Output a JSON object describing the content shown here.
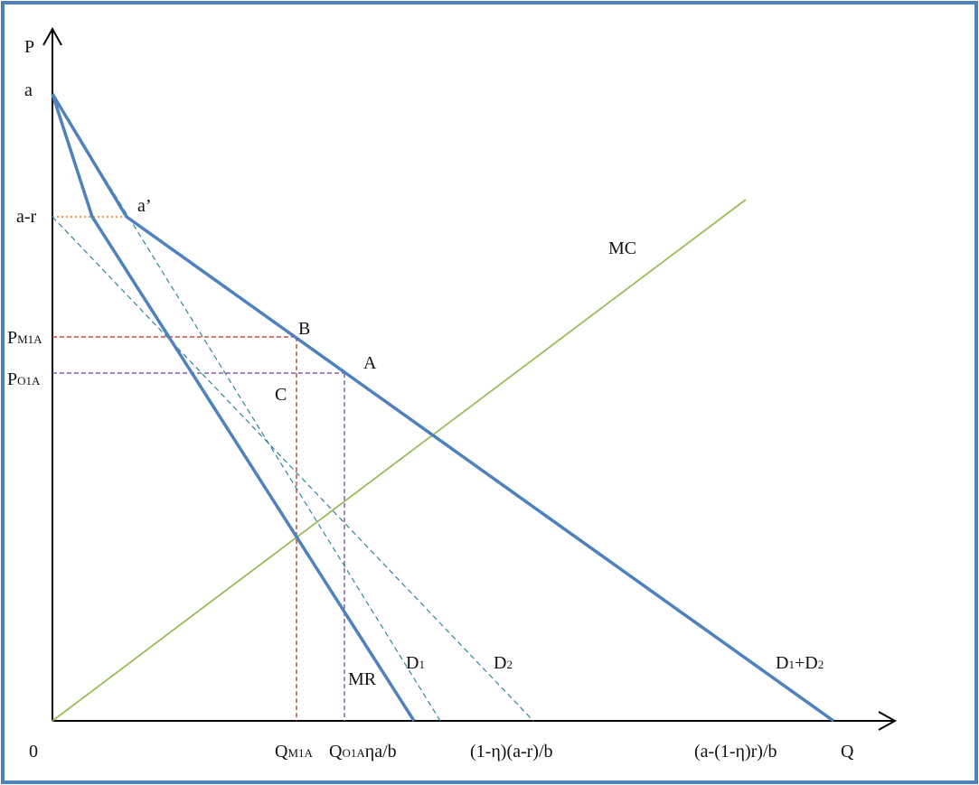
{
  "axes": {
    "y_label": "P",
    "x_label": "Q",
    "origin_label": "0"
  },
  "y_labels": {
    "a": "a",
    "a_minus_r": "a-r",
    "p_m1a_main": "P",
    "p_m1a_sub": "M1A",
    "p_o1a_main": "P",
    "p_o1a_sub": "O1A"
  },
  "x_labels": {
    "q_m1a_main": "Q",
    "q_m1a_sub": "M1A",
    "q_o1a_main": "Q",
    "q_o1a_sub": "O1A",
    "eta_a_b": "ηa/b",
    "one_minus_eta": "(1-η)(a-r)/b",
    "intercept_total": "(a-(1-η)r)/b"
  },
  "points": {
    "a_prime": "a’",
    "B": "B",
    "A": "A",
    "C": "C"
  },
  "curves": {
    "mc": "MC",
    "mr": "MR",
    "d1_main": "D",
    "d1_sub": "1",
    "d2_main": "D",
    "d2_sub": "2",
    "dsum_main1": "D",
    "dsum_sub1": "1",
    "dsum_plus": "+D",
    "dsum_sub2": "2"
  },
  "colors": {
    "frame": "#4f81bd",
    "demand": "#4f81bd",
    "mc": "#9bbb59",
    "dashed_demand": "#31859c",
    "monopoly_guide": "#c0504d",
    "oligopoly_guide": "#8064a2",
    "a_r_guide": "#f79646"
  }
}
